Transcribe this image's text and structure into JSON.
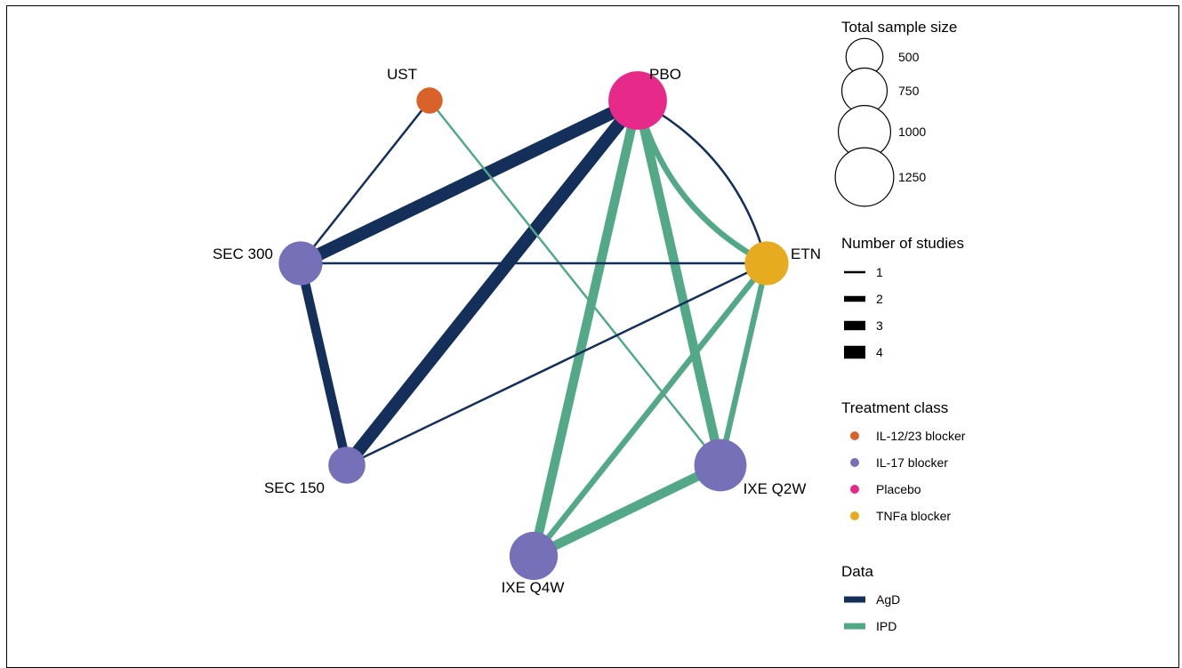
{
  "colors": {
    "agd": "#14305a",
    "ipd": "#52a887",
    "il1223": "#d9622b",
    "il17": "#7570b8",
    "placebo": "#e7298a",
    "tnfa": "#e6ab1f"
  },
  "nodes": [
    {
      "id": "UST",
      "label": "UST",
      "class": "il1223",
      "sample_size": 250
    },
    {
      "id": "PBO",
      "label": "PBO",
      "class": "placebo",
      "sample_size": 1250
    },
    {
      "id": "ETN",
      "label": "ETN",
      "class": "tnfa",
      "sample_size": 700
    },
    {
      "id": "IXE_Q2W",
      "label": "IXE Q2W",
      "class": "il17",
      "sample_size": 1000
    },
    {
      "id": "IXE_Q4W",
      "label": "IXE Q4W",
      "class": "il17",
      "sample_size": 850
    },
    {
      "id": "SEC_150",
      "label": "SEC 150",
      "class": "il17",
      "sample_size": 500
    },
    {
      "id": "SEC_300",
      "label": "SEC 300",
      "class": "il17",
      "sample_size": 700
    }
  ],
  "edges": [
    {
      "from": "UST",
      "to": "SEC_300",
      "studies": 1,
      "data": "AgD"
    },
    {
      "from": "UST",
      "to": "IXE_Q2W",
      "studies": 1,
      "data": "IPD"
    },
    {
      "from": "PBO",
      "to": "SEC_300",
      "studies": 4,
      "data": "AgD"
    },
    {
      "from": "PBO",
      "to": "SEC_150",
      "studies": 4,
      "data": "AgD"
    },
    {
      "from": "PBO",
      "to": "ETN",
      "studies": 1,
      "data": "AgD"
    },
    {
      "from": "PBO",
      "to": "ETN",
      "studies": 2,
      "data": "IPD"
    },
    {
      "from": "PBO",
      "to": "IXE_Q4W",
      "studies": 3,
      "data": "IPD"
    },
    {
      "from": "PBO",
      "to": "IXE_Q2W",
      "studies": 3,
      "data": "IPD"
    },
    {
      "from": "SEC_300",
      "to": "ETN",
      "studies": 1,
      "data": "AgD"
    },
    {
      "from": "SEC_300",
      "to": "SEC_150",
      "studies": 3,
      "data": "AgD"
    },
    {
      "from": "SEC_150",
      "to": "ETN",
      "studies": 1,
      "data": "AgD"
    },
    {
      "from": "ETN",
      "to": "IXE_Q4W",
      "studies": 2,
      "data": "IPD"
    },
    {
      "from": "ETN",
      "to": "IXE_Q2W",
      "studies": 2,
      "data": "IPD"
    },
    {
      "from": "IXE_Q4W",
      "to": "IXE_Q2W",
      "studies": 3,
      "data": "IPD"
    }
  ],
  "legend": {
    "sample_size": {
      "title": "Total sample size",
      "entries": [
        {
          "label": "500",
          "value": 500
        },
        {
          "label": "750",
          "value": 750
        },
        {
          "label": "1000",
          "value": 1000
        },
        {
          "label": "1250",
          "value": 1250
        }
      ]
    },
    "studies": {
      "title": "Number of studies",
      "entries": [
        {
          "label": "1",
          "value": 1
        },
        {
          "label": "2",
          "value": 2
        },
        {
          "label": "3",
          "value": 3
        },
        {
          "label": "4",
          "value": 4
        }
      ]
    },
    "treatment_class": {
      "title": "Treatment class",
      "entries": [
        {
          "label": "IL-12/23 blocker",
          "class": "il1223"
        },
        {
          "label": "IL-17 blocker",
          "class": "il17"
        },
        {
          "label": "Placebo",
          "class": "placebo"
        },
        {
          "label": "TNFa blocker",
          "class": "tnfa"
        }
      ]
    },
    "data": {
      "title": "Data",
      "entries": [
        {
          "label": "AgD",
          "key": "agd"
        },
        {
          "label": "IPD",
          "key": "ipd"
        }
      ]
    }
  }
}
